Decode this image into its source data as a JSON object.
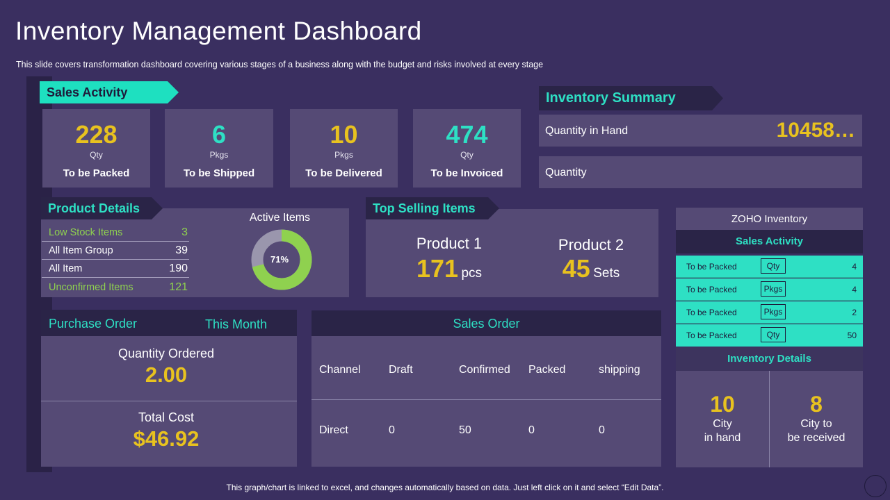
{
  "header": {
    "title": "Inventory Management Dashboard",
    "subtitle": "This slide covers transformation dashboard covering various  stages of a business along with the budget and risks involved  at every stage"
  },
  "sales_activity": {
    "title": "Sales Activity",
    "cards": [
      {
        "value": "228",
        "unit": "Qty",
        "label": "To be Packed",
        "color": "#e8c21f"
      },
      {
        "value": "6",
        "unit": "Pkgs",
        "label": "To be Shipped",
        "color": "#2ee0c4"
      },
      {
        "value": "10",
        "unit": "Pkgs",
        "label": "To be Delivered",
        "color": "#e8c21f"
      },
      {
        "value": "474",
        "unit": "Qty",
        "label": "To be Invoiced",
        "color": "#2ee0c4"
      }
    ]
  },
  "inventory_summary": {
    "title": "Inventory Summary",
    "rows": [
      {
        "label": "Quantity  in Hand",
        "value": "10458…"
      },
      {
        "label": "Quantity",
        "value": ""
      }
    ]
  },
  "product_details": {
    "title": "Product Details",
    "rows": [
      {
        "label": "Low Stock Items",
        "value": "3"
      },
      {
        "label": "All Item Group",
        "value": "39"
      },
      {
        "label": "All Item",
        "value": "190"
      },
      {
        "label": "Unconfirmed Items",
        "value": "121"
      }
    ],
    "active_items": {
      "title": "Active Items",
      "percent": 71,
      "percent_label": "71%"
    }
  },
  "top_selling": {
    "title": "Top Selling Items",
    "products": [
      {
        "name": "Product  1",
        "value": "171",
        "unit": "pcs"
      },
      {
        "name": "Product  2",
        "value": "45",
        "unit": "Sets"
      }
    ]
  },
  "zoho": {
    "title": "ZOHO Inventory",
    "sales_activity_title": "Sales Activity",
    "rows": [
      {
        "label": "To be Packed",
        "badge": "Qty",
        "value": "4"
      },
      {
        "label": "To be Packed",
        "badge": "Pkgs",
        "value": "4"
      },
      {
        "label": "To be Packed",
        "badge": "Pkgs",
        "value": "2"
      },
      {
        "label": "To be Packed",
        "badge": "Qty",
        "value": "50"
      }
    ],
    "inventory_details_title": "Inventory Details",
    "details": [
      {
        "value": "10",
        "line1": "City",
        "line2": "in hand"
      },
      {
        "value": "8",
        "line1": "City to",
        "line2": "be received"
      }
    ]
  },
  "purchase_order": {
    "title": "Purchase Order",
    "period": "This Month",
    "qty_label": "Quantity Ordered",
    "qty_value": "2.00",
    "cost_label": "Total Cost",
    "cost_value": "$46.92"
  },
  "sales_order": {
    "title": "Sales Order",
    "headers": [
      "Channel",
      "Draft",
      "Confirmed",
      "Packed",
      "shipping"
    ],
    "row": [
      "Direct",
      "0",
      "50",
      "0",
      "0"
    ]
  },
  "footer": {
    "note": "This graph/chart is linked to excel,  and changes automatically based on data. Just left click on it and select “Edit Data”."
  }
}
